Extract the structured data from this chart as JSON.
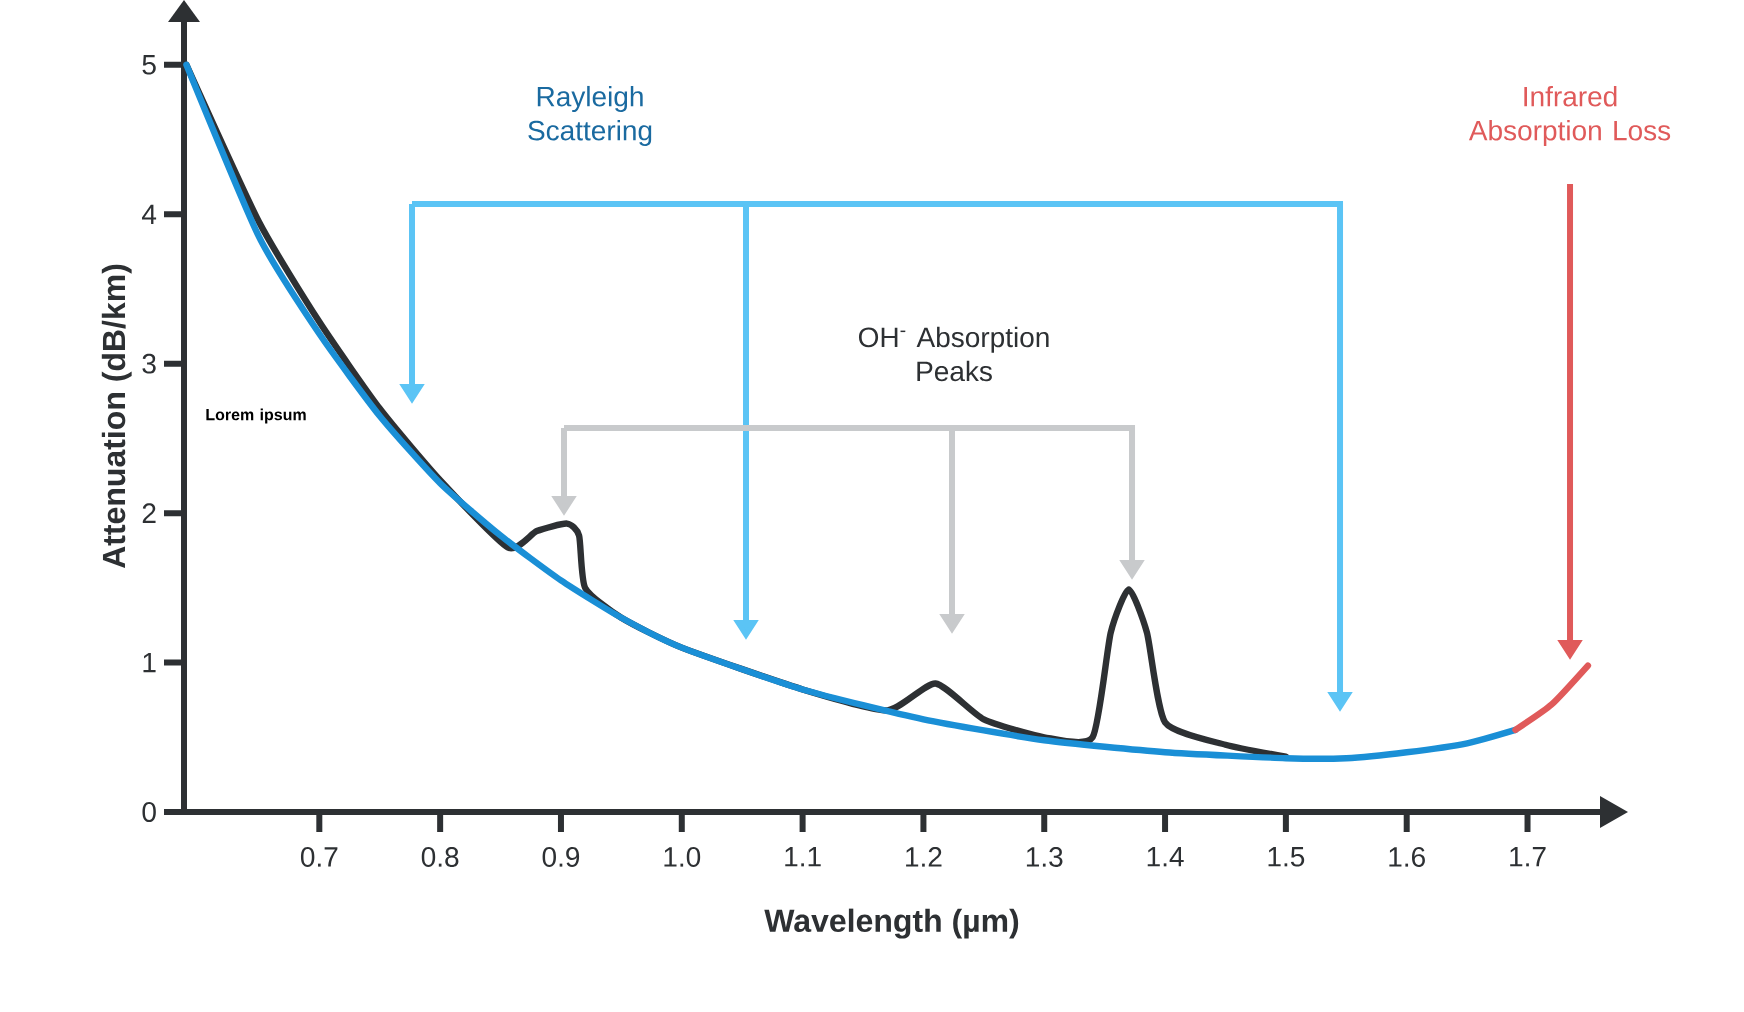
{
  "chart_data": {
    "type": "line",
    "xlabel": "Wavelength (µm)",
    "ylabel": "Attenuation (dB/km)",
    "xlim": [
      0.588,
      1.76
    ],
    "ylim": [
      0,
      5.3
    ],
    "xticks": [
      0.7,
      0.8,
      0.9,
      {
        "value": 1,
        "label": "1.0"
      },
      1.1,
      1.2,
      1.3,
      1.4,
      1.5,
      1.6,
      1.7
    ],
    "yticks": [
      0,
      1,
      2,
      3,
      4,
      5
    ],
    "grid": false,
    "legend": false,
    "marker": "none",
    "line_style": "solid",
    "series": [
      {
        "color": "#2d3033",
        "x": [
          0.59,
          0.65,
          0.7,
          0.75,
          0.8,
          0.856,
          0.88,
          0.905,
          0.915,
          0.92,
          0.95,
          1.0,
          1.1,
          1.17,
          1.21,
          1.25,
          1.3,
          1.34,
          1.355,
          1.37,
          1.385,
          1.4,
          1.45,
          1.5
        ],
        "values": [
          5.0,
          3.95,
          3.28,
          2.7,
          2.22,
          1.77,
          1.88,
          1.93,
          1.85,
          1.5,
          1.3,
          1.1,
          0.82,
          0.68,
          0.86,
          0.62,
          0.5,
          0.5,
          1.2,
          1.49,
          1.2,
          0.6,
          0.45,
          0.37
        ]
      },
      {
        "color": "#1a8fd6",
        "x": [
          0.59,
          0.65,
          0.7,
          0.75,
          0.8,
          0.85,
          0.9,
          0.95,
          1.0,
          1.1,
          1.2,
          1.3,
          1.4,
          1.5,
          1.55,
          1.6,
          1.65,
          1.69
        ],
        "values": [
          5.0,
          3.85,
          3.2,
          2.65,
          2.2,
          1.85,
          1.55,
          1.3,
          1.1,
          0.82,
          0.62,
          0.48,
          0.4,
          0.36,
          0.36,
          0.4,
          0.46,
          0.55
        ]
      },
      {
        "color": "#e05a5a",
        "x": [
          1.69,
          1.72,
          1.75
        ],
        "values": [
          0.55,
          0.72,
          0.98
        ]
      }
    ],
    "annotations": [
      "Rayleigh Scattering",
      "OH$^{-}$ Absorption Peaks",
      "Infrared Absorption Loss",
      "Lorem ipsum"
    ]
  }
}
